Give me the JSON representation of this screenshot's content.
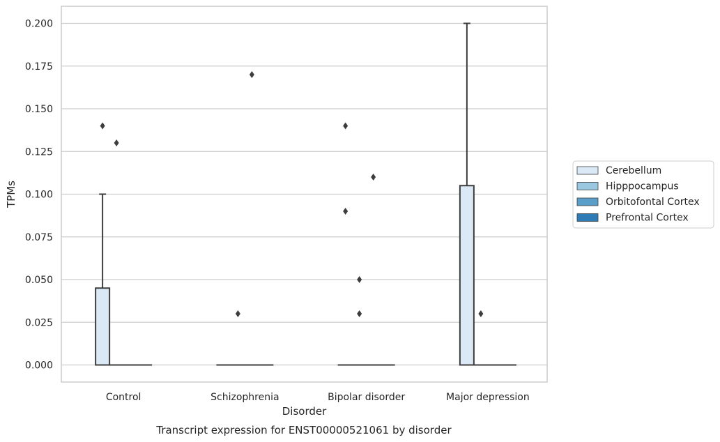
{
  "chart_data": {
    "type": "box",
    "title": "Transcript expression for ENST00000521061 by disorder",
    "xlabel": "Disorder",
    "ylabel": "TPMs",
    "ylim": [
      -0.01,
      0.21
    ],
    "yticks": [
      0.0,
      0.025,
      0.05,
      0.075,
      0.1,
      0.125,
      0.15,
      0.175,
      0.2
    ],
    "ytick_labels": [
      "0.000",
      "0.025",
      "0.050",
      "0.075",
      "0.100",
      "0.125",
      "0.150",
      "0.175",
      "0.200"
    ],
    "categories": [
      "Control",
      "Schizophrenia",
      "Bipolar disorder",
      "Major depression"
    ],
    "grid": "horizontal",
    "legend_position": "right",
    "series": [
      {
        "name": "Cerebellum",
        "color": "#dbe9f6",
        "boxes": [
          {
            "category": "Control",
            "q1": 0.0,
            "median": 0.0,
            "q3": 0.045,
            "whisker_low": 0.0,
            "whisker_high": 0.1,
            "outliers": [
              0.14
            ]
          },
          {
            "category": "Schizophrenia",
            "q1": 0.0,
            "median": 0.0,
            "q3": 0.0,
            "whisker_low": 0.0,
            "whisker_high": 0.0,
            "outliers": []
          },
          {
            "category": "Bipolar disorder",
            "q1": 0.0,
            "median": 0.0,
            "q3": 0.0,
            "whisker_low": 0.0,
            "whisker_high": 0.0,
            "outliers": [
              0.14,
              0.09
            ]
          },
          {
            "category": "Major depression",
            "q1": 0.0,
            "median": 0.0,
            "q3": 0.105,
            "whisker_low": 0.0,
            "whisker_high": 0.2,
            "outliers": []
          }
        ]
      },
      {
        "name": "Hipppocampus",
        "color": "#9ac8e0",
        "boxes": [
          {
            "category": "Control",
            "q1": 0.0,
            "median": 0.0,
            "q3": 0.0,
            "whisker_low": 0.0,
            "whisker_high": 0.0,
            "outliers": [
              0.13
            ]
          },
          {
            "category": "Schizophrenia",
            "q1": 0.0,
            "median": 0.0,
            "q3": 0.0,
            "whisker_low": 0.0,
            "whisker_high": 0.0,
            "outliers": [
              0.03
            ]
          },
          {
            "category": "Bipolar disorder",
            "q1": 0.0,
            "median": 0.0,
            "q3": 0.0,
            "whisker_low": 0.0,
            "whisker_high": 0.0,
            "outliers": [
              0.05,
              0.03
            ]
          },
          {
            "category": "Major depression",
            "q1": 0.0,
            "median": 0.0,
            "q3": 0.0,
            "whisker_low": 0.0,
            "whisker_high": 0.0,
            "outliers": [
              0.03
            ]
          }
        ]
      },
      {
        "name": "Orbitofontal Cortex",
        "color": "#5a9ec9",
        "boxes": [
          {
            "category": "Control",
            "q1": 0.0,
            "median": 0.0,
            "q3": 0.0,
            "whisker_low": 0.0,
            "whisker_high": 0.0,
            "outliers": []
          },
          {
            "category": "Schizophrenia",
            "q1": 0.0,
            "median": 0.0,
            "q3": 0.0,
            "whisker_low": 0.0,
            "whisker_high": 0.0,
            "outliers": [
              0.17
            ]
          },
          {
            "category": "Bipolar disorder",
            "q1": 0.0,
            "median": 0.0,
            "q3": 0.0,
            "whisker_low": 0.0,
            "whisker_high": 0.0,
            "outliers": [
              0.11
            ]
          },
          {
            "category": "Major depression",
            "q1": 0.0,
            "median": 0.0,
            "q3": 0.0,
            "whisker_low": 0.0,
            "whisker_high": 0.0,
            "outliers": []
          }
        ]
      },
      {
        "name": "Prefrontal Cortex",
        "color": "#2c7bb6",
        "boxes": [
          {
            "category": "Control",
            "q1": 0.0,
            "median": 0.0,
            "q3": 0.0,
            "whisker_low": 0.0,
            "whisker_high": 0.0,
            "outliers": []
          },
          {
            "category": "Schizophrenia",
            "q1": 0.0,
            "median": 0.0,
            "q3": 0.0,
            "whisker_low": 0.0,
            "whisker_high": 0.0,
            "outliers": []
          },
          {
            "category": "Bipolar disorder",
            "q1": 0.0,
            "median": 0.0,
            "q3": 0.0,
            "whisker_low": 0.0,
            "whisker_high": 0.0,
            "outliers": []
          },
          {
            "category": "Major depression",
            "q1": 0.0,
            "median": 0.0,
            "q3": 0.0,
            "whisker_low": 0.0,
            "whisker_high": 0.0,
            "outliers": []
          }
        ]
      }
    ]
  }
}
